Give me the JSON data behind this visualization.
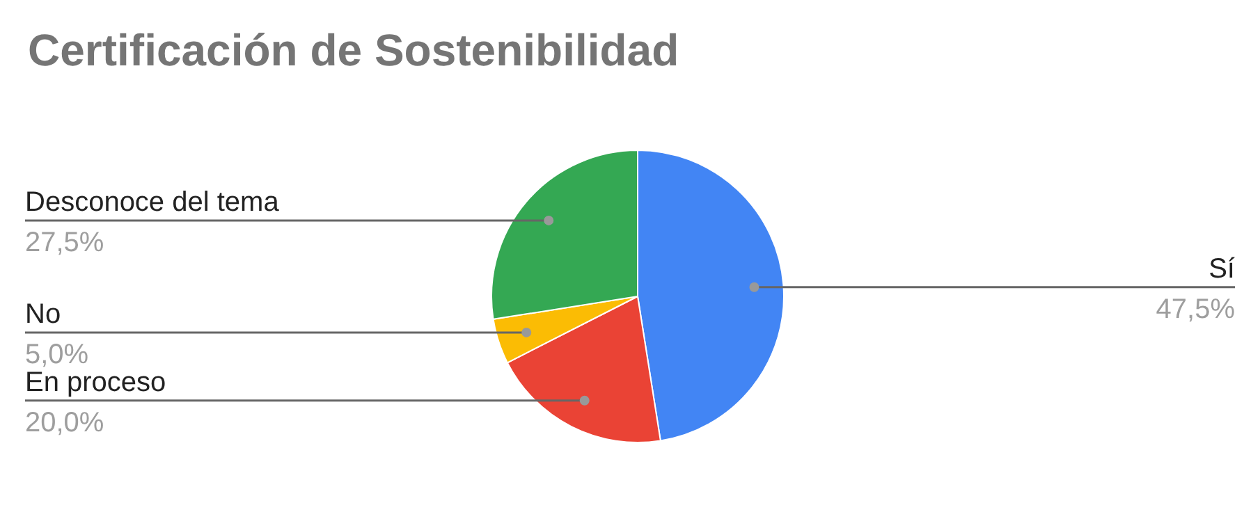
{
  "chart_data": {
    "type": "pie",
    "title": "Certificación de Sostenibilidad",
    "categories": [
      "Sí",
      "En proceso",
      "No",
      "Desconoce del tema"
    ],
    "values": [
      47.5,
      20.0,
      5.0,
      27.5
    ],
    "colors": [
      "#4285f4",
      "#ea4335",
      "#fbbc04",
      "#34a853"
    ],
    "value_labels": [
      "47,5%",
      "20,0%",
      "5,0%",
      "27,5%"
    ]
  }
}
